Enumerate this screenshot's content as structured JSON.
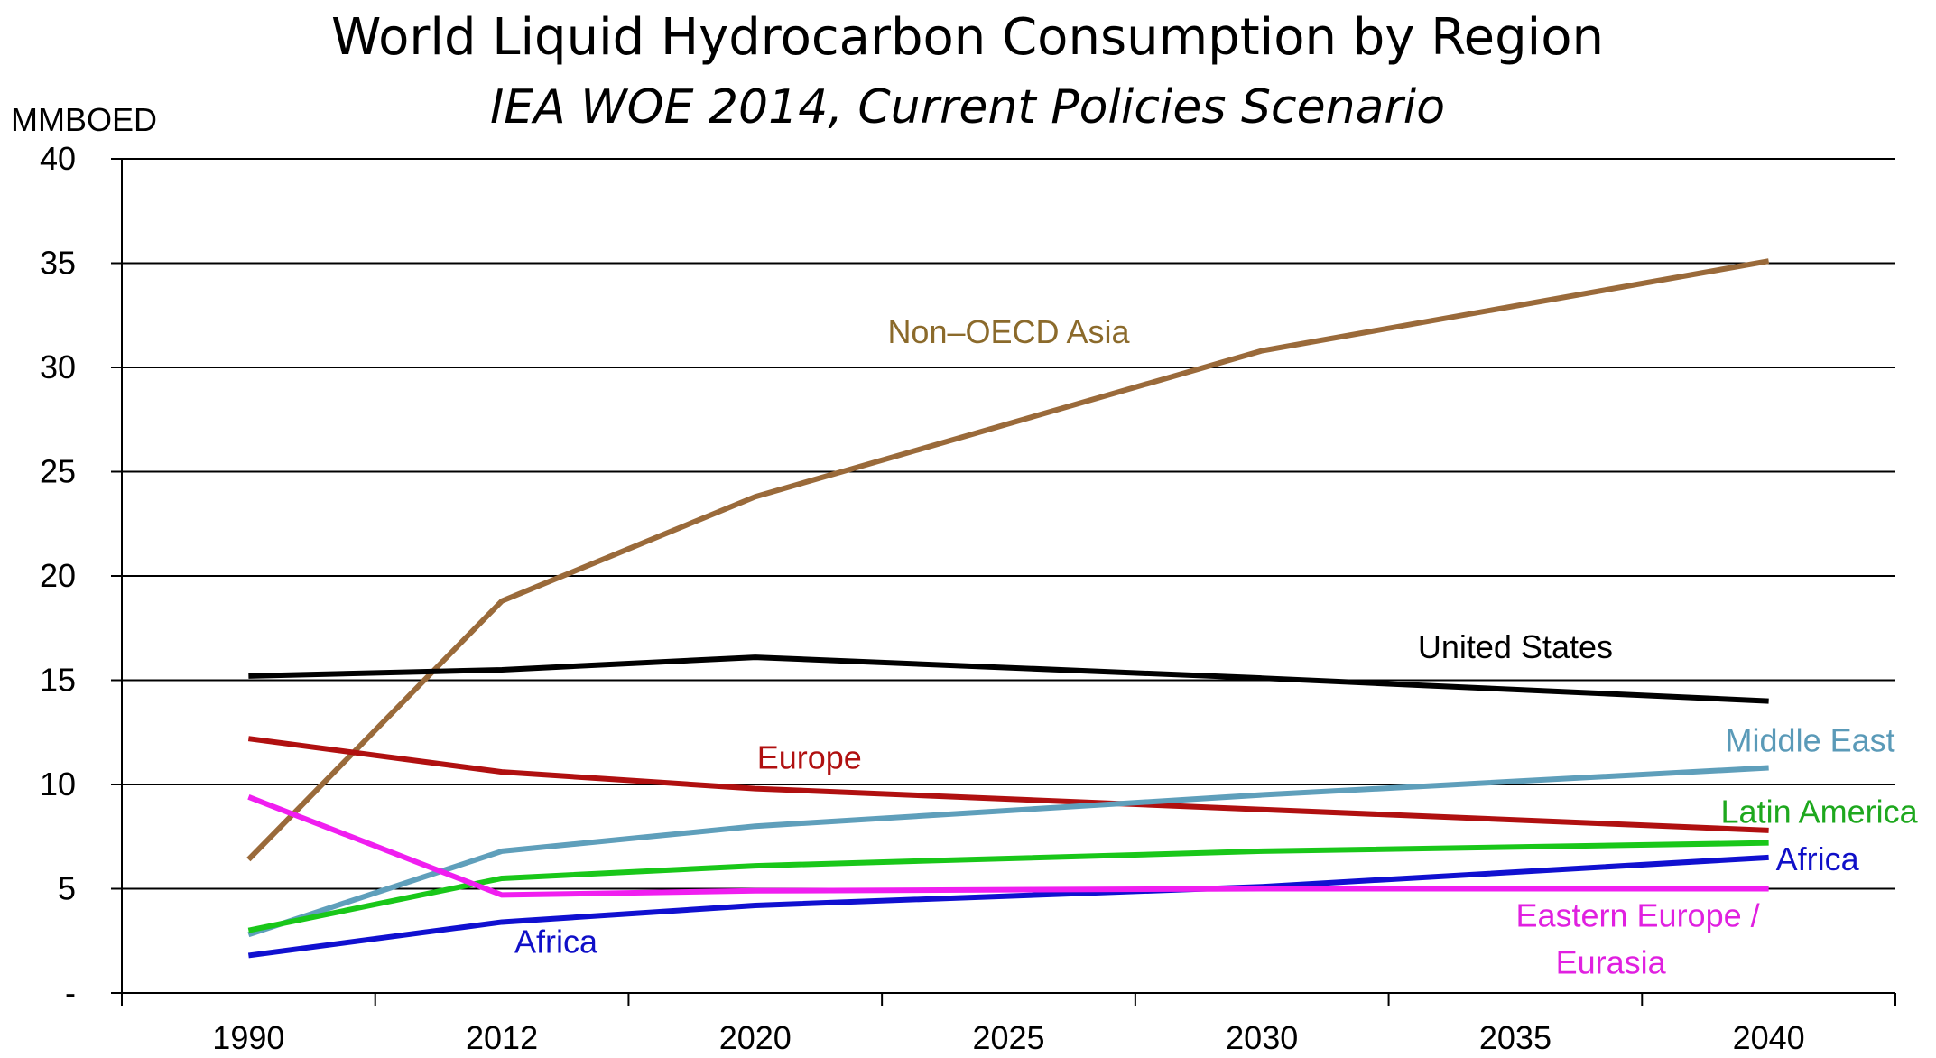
{
  "chart_data": {
    "type": "line",
    "title": "World Liquid Hydrocarbon Consumption by Region",
    "subtitle": "IEA WOE 2014, Current Policies Scenario",
    "ylabel": "MMBOED",
    "xlabel": "",
    "categories": [
      "1990",
      "2012",
      "2020",
      "2025",
      "2030",
      "2035",
      "2040"
    ],
    "ylim": [
      0,
      40
    ],
    "yticks": [
      0,
      5,
      10,
      15,
      20,
      25,
      30,
      35,
      40
    ],
    "ytick_labels": [
      "-",
      "5",
      "10",
      "15",
      "20",
      "25",
      "30",
      "35",
      "40"
    ],
    "grid": true,
    "series": [
      {
        "name": "Non–OECD Asia",
        "color": "#9a6a3a",
        "label_color": "#8b6a2b",
        "x": [
          "1990",
          "2012",
          "2020",
          "2030",
          "2040"
        ],
        "values": [
          6.4,
          18.8,
          23.8,
          30.8,
          35.1
        ]
      },
      {
        "name": "United States",
        "color": "#000000",
        "label_color": "#000000",
        "x": [
          "1990",
          "2012",
          "2020",
          "2030",
          "2040"
        ],
        "values": [
          15.2,
          15.5,
          16.1,
          15.1,
          14.0
        ]
      },
      {
        "name": "Europe",
        "color": "#b01010",
        "label_color": "#b01010",
        "x": [
          "1990",
          "2012",
          "2020",
          "2030",
          "2040"
        ],
        "values": [
          12.2,
          10.6,
          9.8,
          8.8,
          7.8
        ]
      },
      {
        "name": "Middle East",
        "color": "#5f9fbb",
        "label_color": "#5a9ab8",
        "x": [
          "1990",
          "2012",
          "2020",
          "2030",
          "2040"
        ],
        "values": [
          2.8,
          6.8,
          8.0,
          9.5,
          10.8
        ]
      },
      {
        "name": "Latin America",
        "color": "#19c719",
        "label_color": "#1ea81e",
        "x": [
          "1990",
          "2012",
          "2020",
          "2030",
          "2040"
        ],
        "values": [
          3.0,
          5.5,
          6.1,
          6.8,
          7.2
        ]
      },
      {
        "name": "Africa",
        "color": "#1010d0",
        "label_color": "#1010c8",
        "x": [
          "1990",
          "2012",
          "2020",
          "2030",
          "2040"
        ],
        "values": [
          1.8,
          3.4,
          4.2,
          5.1,
          6.5
        ]
      },
      {
        "name": "Eastern Europe / Eurasia",
        "color": "#f01ef0",
        "label_color": "#e020e0",
        "x": [
          "1990",
          "2012",
          "2020",
          "2030",
          "2040"
        ],
        "values": [
          9.4,
          4.7,
          4.9,
          5.0,
          5.0
        ]
      }
    ],
    "annotations": [
      {
        "text": "Non–OECD Asia",
        "series": "Non–OECD Asia"
      },
      {
        "text": "United States",
        "series": "United States"
      },
      {
        "text": "Europe",
        "series": "Europe"
      },
      {
        "text": "Middle East",
        "series": "Middle East"
      },
      {
        "text": "Latin America",
        "series": "Latin America"
      },
      {
        "text": "Africa",
        "series": "Africa"
      },
      {
        "text": "Africa",
        "series": "Africa"
      },
      {
        "text": "Eastern Europe /",
        "series": "Eastern Europe / Eurasia"
      },
      {
        "text": "Eurasia",
        "series": "Eastern Europe / Eurasia"
      }
    ]
  }
}
